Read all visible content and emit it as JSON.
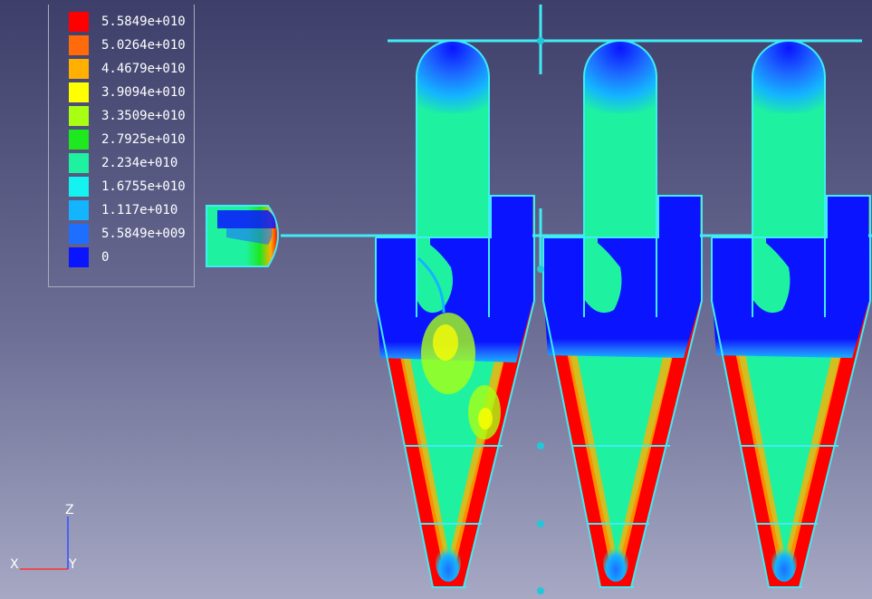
{
  "legend": {
    "entries": [
      {
        "label": "5.5849e+010",
        "color": "#ff0000"
      },
      {
        "label": "5.0264e+010",
        "color": "#ff6a0a"
      },
      {
        "label": "4.4679e+010",
        "color": "#ffb000"
      },
      {
        "label": "3.9094e+010",
        "color": "#ffff00"
      },
      {
        "label": "3.3509e+010",
        "color": "#a8ff14"
      },
      {
        "label": "2.7925e+010",
        "color": "#1ee81e"
      },
      {
        "label": "2.234e+010",
        "color": "#1ef2a0"
      },
      {
        "label": "1.6755e+010",
        "color": "#14f2f2"
      },
      {
        "label": "1.117e+010",
        "color": "#14b4ff"
      },
      {
        "label": "5.5849e+009",
        "color": "#1e6eff"
      },
      {
        "label": "0",
        "color": "#0a14ff"
      }
    ]
  },
  "axes": {
    "x": "X",
    "y": "Y",
    "z": "Z"
  },
  "colors": {
    "outline": "#40ecf4",
    "fluid": "#1ef2a0",
    "low": "#0a14ff",
    "wall_high": "#ff0000",
    "axis_x": "#ff3030",
    "axis_z": "#3050ff"
  }
}
